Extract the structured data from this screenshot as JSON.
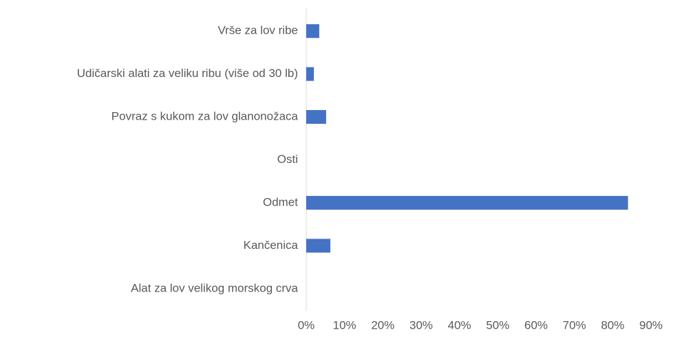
{
  "chart_data": {
    "type": "hbar",
    "categories": [
      "Vrše za lov ribe",
      "Udičarski alati za veliku ribu (više od 30 lb)",
      "Povraz s kukom za lov glanonožaca",
      "Osti",
      "Odmet",
      "Kančenica",
      "Alat za lov velikog morskog crva"
    ],
    "values": [
      3.4,
      2,
      5.2,
      0,
      84,
      6.3,
      0
    ],
    "color": "#4472c4",
    "xlim": [
      0,
      90
    ],
    "xticks": [
      {
        "value": 0,
        "label": "0%"
      },
      {
        "value": 10,
        "label": "10%"
      },
      {
        "value": 20,
        "label": "20%"
      },
      {
        "value": 30,
        "label": "30%"
      },
      {
        "value": 40,
        "label": "40%"
      },
      {
        "value": 50,
        "label": "50%"
      },
      {
        "value": 60,
        "label": "60%"
      },
      {
        "value": 70,
        "label": "70%"
      },
      {
        "value": 80,
        "label": "80%"
      },
      {
        "value": 90,
        "label": "90%"
      }
    ],
    "grid": false
  }
}
